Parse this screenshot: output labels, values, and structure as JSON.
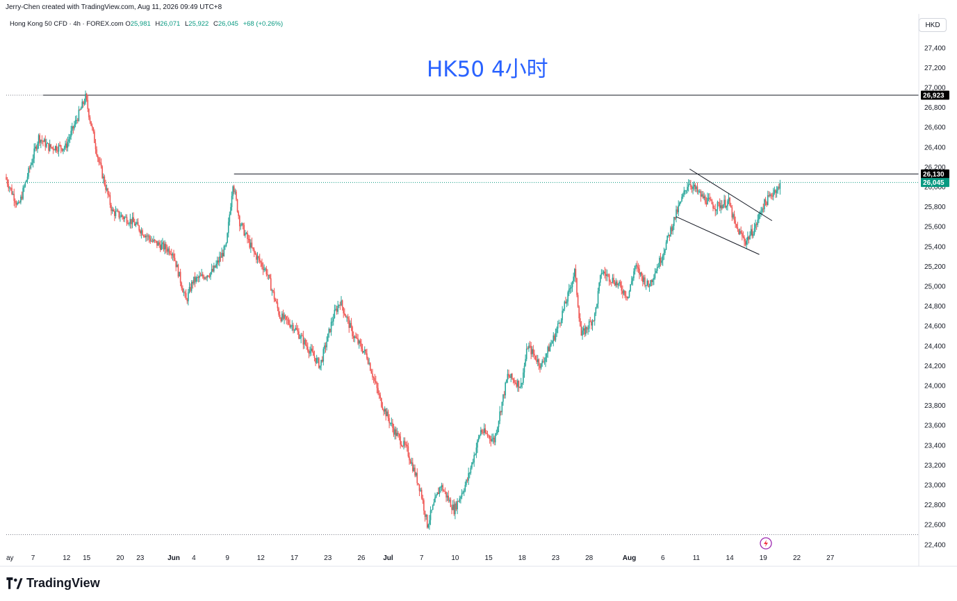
{
  "header": {
    "created_by": "Jerry-Chen created with TradingView.com, Aug 11, 2026 09:49 UTC+8"
  },
  "symbol": {
    "name": "Hong Kong 50 CFD · 4h · FOREX.com",
    "open_label": "O",
    "open": "25,981",
    "high_label": "H",
    "high": "26,071",
    "low_label": "L",
    "low": "25,922",
    "close_label": "C",
    "close": "26,045",
    "change": "+68 (+0.26%)"
  },
  "currency": "HKD",
  "brand": "TradingView",
  "chart_data": {
    "type": "candlestick",
    "title": "HK50 4小时",
    "y_ticks": [
      "27,400",
      "27,200",
      "27,000",
      "26,800",
      "26,600",
      "26,400",
      "26,200",
      "26,000",
      "25,800",
      "25,600",
      "25,400",
      "25,200",
      "25,000",
      "24,800",
      "24,600",
      "24,400",
      "24,200",
      "24,000",
      "23,800",
      "23,600",
      "23,400",
      "23,200",
      "23,000",
      "22,800",
      "22,600",
      "22,400"
    ],
    "y_tick_values": [
      27400,
      27200,
      27000,
      26800,
      26600,
      26400,
      26200,
      26000,
      25800,
      25600,
      25400,
      25200,
      25000,
      24800,
      24600,
      24400,
      24200,
      24000,
      23800,
      23600,
      23400,
      23200,
      23000,
      22800,
      22600,
      22400
    ],
    "x_ticks": [
      "ay",
      "7",
      "12",
      "15",
      "20",
      "23",
      "Jun",
      "4",
      "9",
      "12",
      "17",
      "23",
      "26",
      "Jul",
      "7",
      "10",
      "15",
      "18",
      "23",
      "28",
      "Aug",
      "6",
      "11",
      "14",
      "19",
      "22",
      "27"
    ],
    "x_tick_days": [
      0,
      4,
      9,
      12,
      17,
      20,
      25,
      28,
      33,
      38,
      43,
      48,
      53,
      57,
      62,
      67,
      72,
      77,
      82,
      87,
      93,
      98,
      103,
      108,
      113,
      118,
      123
    ],
    "ylim": [
      22350,
      27500
    ],
    "price_labels": [
      {
        "text": "26,923",
        "value": 26923,
        "color": "#000000"
      },
      {
        "text": "26,130",
        "value": 26130,
        "color": "#000000"
      },
      {
        "text": "26,045",
        "value": 26045,
        "color": "#089981"
      }
    ],
    "horizontal_lines": [
      {
        "value": 26923,
        "from_day": 5.5,
        "style": "solid"
      },
      {
        "value": 26130,
        "from_day": 34,
        "style": "solid"
      },
      {
        "value": 26923,
        "from_day": 0,
        "to_day": 5.5,
        "style": "dotted"
      },
      {
        "value": 26045,
        "from_day": 0,
        "style": "dotted-green"
      },
      {
        "value": 22500,
        "from_day": 0,
        "style": "dotted"
      }
    ],
    "trendlines": [
      {
        "from_day": 102,
        "from_value": 26180,
        "to_day": 114.3,
        "to_value": 25660
      },
      {
        "from_day": 100,
        "from_value": 25700,
        "to_day": 112.4,
        "to_value": 25320
      }
    ],
    "anchors": [
      {
        "day": 0,
        "value": 26100
      },
      {
        "day": 2,
        "value": 25800
      },
      {
        "day": 5,
        "value": 26500
      },
      {
        "day": 6.5,
        "value": 26400
      },
      {
        "day": 9,
        "value": 26400
      },
      {
        "day": 12,
        "value": 26900
      },
      {
        "day": 14,
        "value": 26250
      },
      {
        "day": 16,
        "value": 25750
      },
      {
        "day": 19,
        "value": 25650
      },
      {
        "day": 22,
        "value": 25450
      },
      {
        "day": 25,
        "value": 25350
      },
      {
        "day": 27,
        "value": 24850
      },
      {
        "day": 28,
        "value": 25050
      },
      {
        "day": 31,
        "value": 25150
      },
      {
        "day": 33,
        "value": 25400
      },
      {
        "day": 34,
        "value": 26050
      },
      {
        "day": 35,
        "value": 25650
      },
      {
        "day": 37,
        "value": 25350
      },
      {
        "day": 39,
        "value": 25150
      },
      {
        "day": 41,
        "value": 24700
      },
      {
        "day": 43,
        "value": 24600
      },
      {
        "day": 45,
        "value": 24400
      },
      {
        "day": 47,
        "value": 24200
      },
      {
        "day": 49,
        "value": 24700
      },
      {
        "day": 50,
        "value": 24850
      },
      {
        "day": 52,
        "value": 24500
      },
      {
        "day": 54,
        "value": 24300
      },
      {
        "day": 56,
        "value": 23850
      },
      {
        "day": 58,
        "value": 23550
      },
      {
        "day": 60,
        "value": 23350
      },
      {
        "day": 62,
        "value": 22950
      },
      {
        "day": 63,
        "value": 22600
      },
      {
        "day": 65,
        "value": 23000
      },
      {
        "day": 67,
        "value": 22750
      },
      {
        "day": 69,
        "value": 23050
      },
      {
        "day": 71,
        "value": 23550
      },
      {
        "day": 73,
        "value": 23450
      },
      {
        "day": 75,
        "value": 24100
      },
      {
        "day": 77,
        "value": 24000
      },
      {
        "day": 78,
        "value": 24400
      },
      {
        "day": 80,
        "value": 24200
      },
      {
        "day": 82,
        "value": 24500
      },
      {
        "day": 84,
        "value": 24900
      },
      {
        "day": 85,
        "value": 25150
      },
      {
        "day": 86,
        "value": 24500
      },
      {
        "day": 88,
        "value": 24700
      },
      {
        "day": 89,
        "value": 25150
      },
      {
        "day": 91,
        "value": 25050
      },
      {
        "day": 93,
        "value": 24900
      },
      {
        "day": 94,
        "value": 25200
      },
      {
        "day": 96,
        "value": 25000
      },
      {
        "day": 98,
        "value": 25300
      },
      {
        "day": 100,
        "value": 25700
      },
      {
        "day": 102,
        "value": 26050
      },
      {
        "day": 104,
        "value": 25900
      },
      {
        "day": 106,
        "value": 25800
      },
      {
        "day": 108,
        "value": 25850
      },
      {
        "day": 109,
        "value": 25600
      },
      {
        "day": 110.5,
        "value": 25450
      },
      {
        "day": 112,
        "value": 25600
      },
      {
        "day": 113,
        "value": 25800
      },
      {
        "day": 115,
        "value": 25980
      }
    ],
    "last_candle": {
      "day": 115.5,
      "open": 25981,
      "high": 26071,
      "low": 25922,
      "close": 26045
    }
  },
  "colors": {
    "up": "#26a69a",
    "down": "#ef5350",
    "title": "#2962ff",
    "last_price": "#089981",
    "grid_text": "#131722"
  }
}
